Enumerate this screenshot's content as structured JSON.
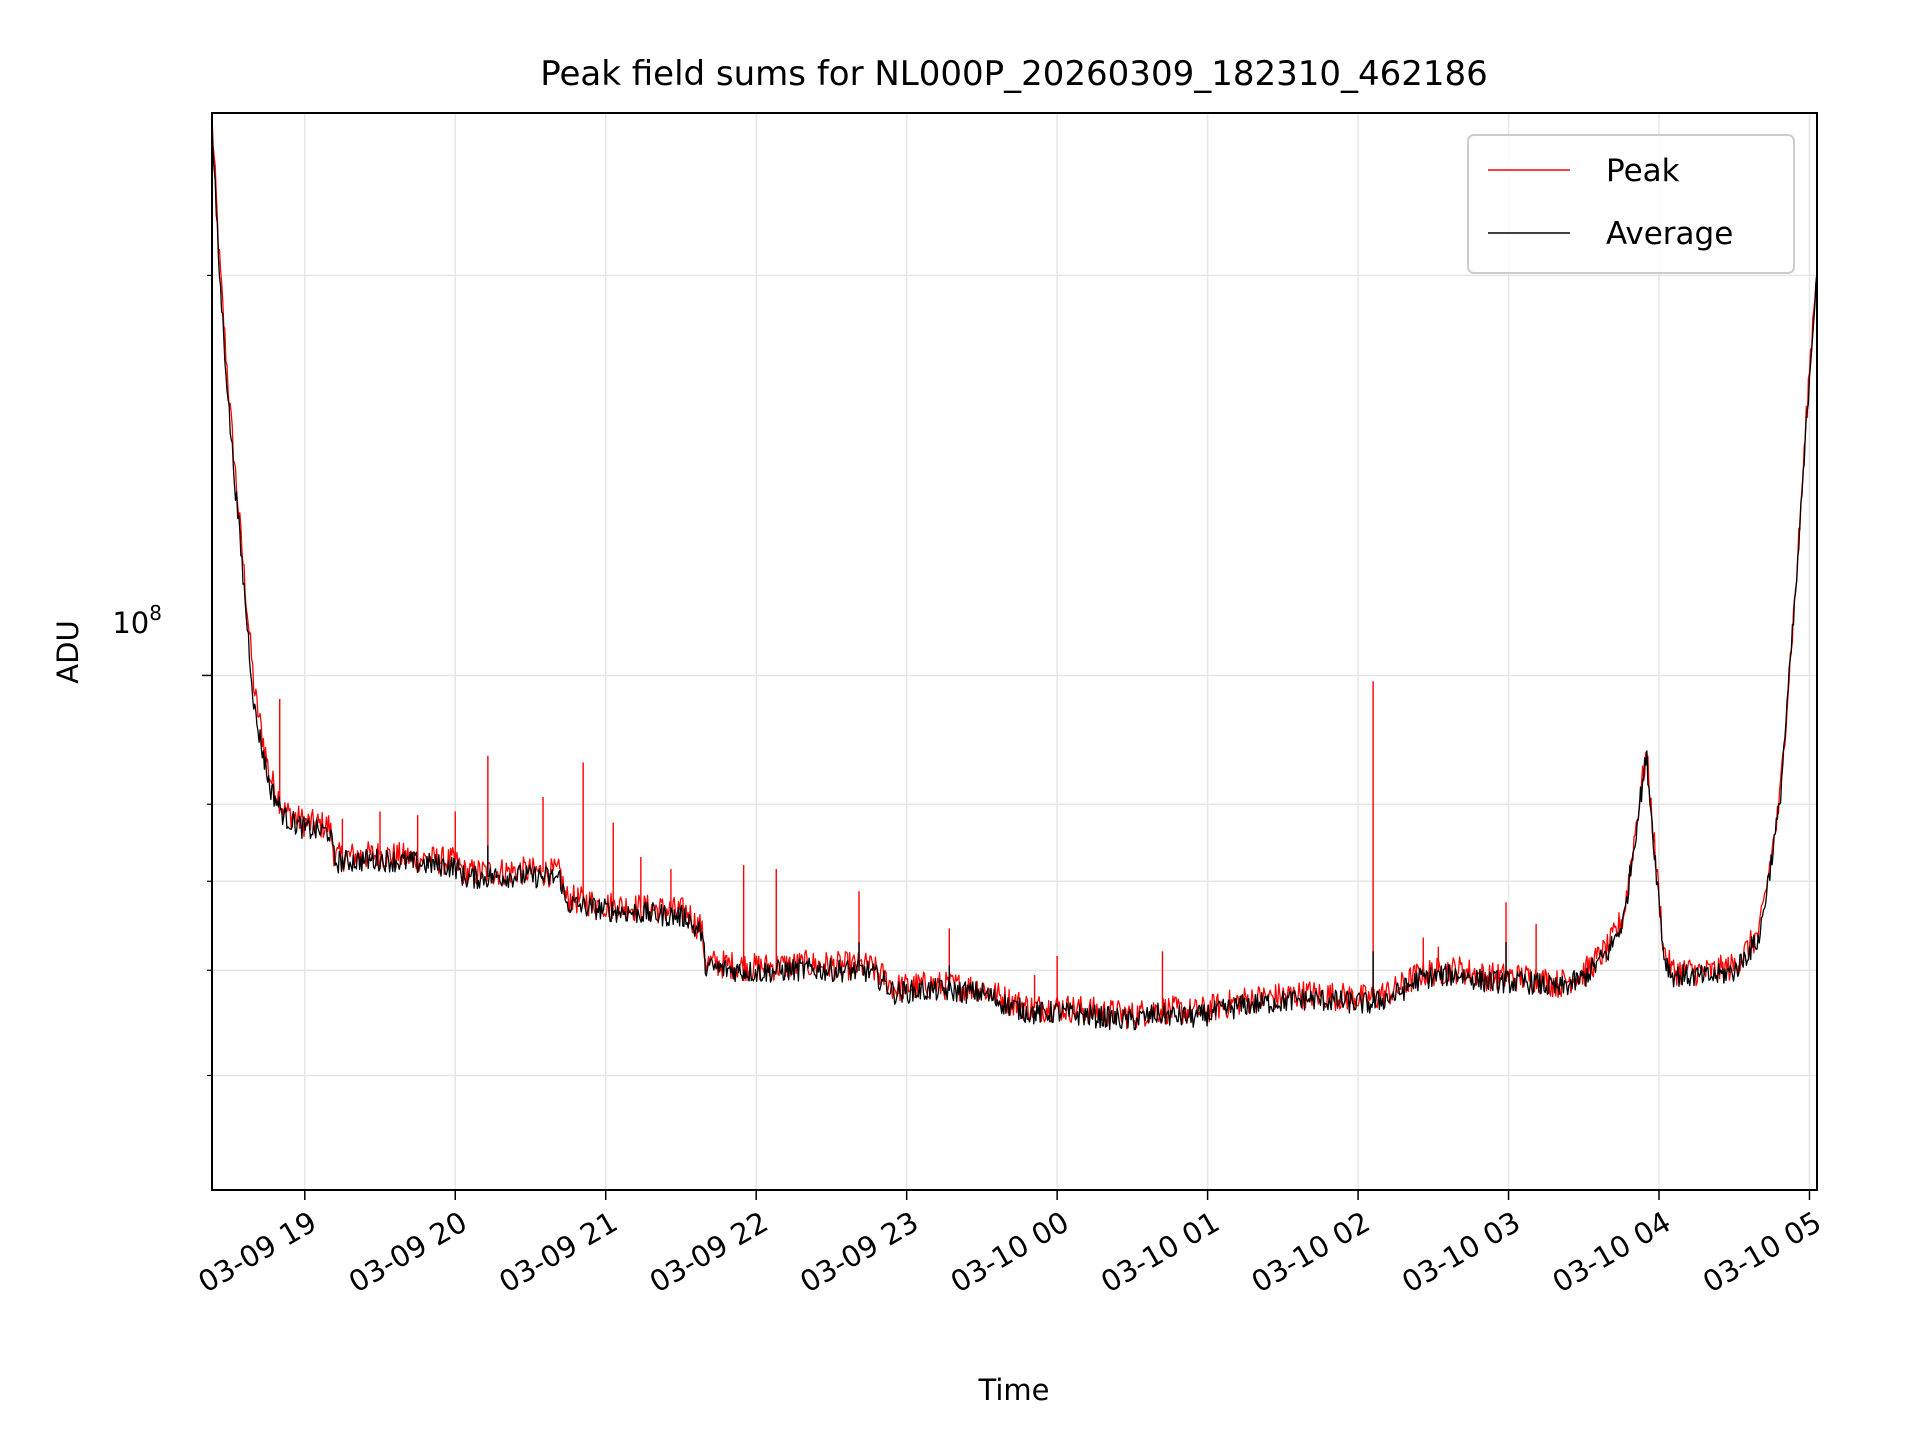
{
  "chart_data": {
    "type": "line",
    "title": "Peak field sums for NL000P_20260309_182310_462186",
    "xlabel": "Time",
    "ylabel": "ADU",
    "y_scale": "log",
    "x_tick_labels": [
      "03-09 19",
      "03-09 20",
      "03-09 21",
      "03-09 22",
      "03-09 23",
      "03-10 00",
      "03-10 01",
      "03-10 02",
      "03-10 03",
      "03-10 04",
      "03-10 05"
    ],
    "y_tick_label_base": "10",
    "y_tick_label_exp": "8",
    "xlim": [
      "2026-03-09 18:23",
      "2026-03-10 05:03"
    ],
    "ylim": [
      41000000,
      265000000
    ],
    "grid": true,
    "legend_position": "upper right",
    "series": [
      {
        "name": "Peak",
        "color": "#ff0000",
        "points": [
          [
            "2026-03-09 18:23",
            262000000
          ],
          [
            "2026-03-09 18:26",
            205000000
          ],
          [
            "2026-03-09 18:30",
            160000000
          ],
          [
            "2026-03-09 18:35",
            124000000
          ],
          [
            "2026-03-09 18:40",
            97000000
          ],
          [
            "2026-03-09 18:46",
            84000000
          ],
          [
            "2026-03-09 18:52",
            79000000
          ],
          [
            "2026-03-09 19:00",
            77500000
          ],
          [
            "2026-03-09 19:10",
            77000000
          ],
          [
            "2026-03-09 19:12",
            73000000
          ],
          [
            "2026-03-09 19:30",
            73300000
          ],
          [
            "2026-03-09 19:50",
            72700000
          ],
          [
            "2026-03-09 20:00",
            72400000
          ],
          [
            "2026-03-09 20:04",
            71000000
          ],
          [
            "2026-03-09 20:25",
            71300000
          ],
          [
            "2026-03-09 20:42",
            71000000
          ],
          [
            "2026-03-09 20:44",
            68000000
          ],
          [
            "2026-03-09 21:00",
            67200000
          ],
          [
            "2026-03-09 21:20",
            66700000
          ],
          [
            "2026-03-09 21:33",
            66400000
          ],
          [
            "2026-03-09 21:35",
            65200000
          ],
          [
            "2026-03-09 21:38",
            64700000
          ],
          [
            "2026-03-09 21:40",
            60800000
          ],
          [
            "2026-03-09 22:00",
            60300000
          ],
          [
            "2026-03-09 22:20",
            60600000
          ],
          [
            "2026-03-09 22:45",
            60400000
          ],
          [
            "2026-03-09 22:50",
            59500000
          ],
          [
            "2026-03-09 22:55",
            58200000
          ],
          [
            "2026-03-09 23:10",
            58500000
          ],
          [
            "2026-03-09 23:30",
            58200000
          ],
          [
            "2026-03-09 23:40",
            57000000
          ],
          [
            "2026-03-09 23:50",
            56200000
          ],
          [
            "2026-03-10 00:00",
            56300000
          ],
          [
            "2026-03-10 00:15",
            55900000
          ],
          [
            "2026-03-10 00:30",
            55500000
          ],
          [
            "2026-03-10 00:40",
            56100000
          ],
          [
            "2026-03-10 00:55",
            55800000
          ],
          [
            "2026-03-10 01:15",
            57000000
          ],
          [
            "2026-03-10 01:40",
            57600000
          ],
          [
            "2026-03-10 02:05",
            57100000
          ],
          [
            "2026-03-10 02:15",
            58000000
          ],
          [
            "2026-03-10 02:25",
            59700000
          ],
          [
            "2026-03-10 02:40",
            60100000
          ],
          [
            "2026-03-10 02:50",
            59400000
          ],
          [
            "2026-03-10 03:10",
            59200000
          ],
          [
            "2026-03-10 03:20",
            58600000
          ],
          [
            "2026-03-10 03:30",
            59700000
          ],
          [
            "2026-03-10 03:40",
            62500000
          ],
          [
            "2026-03-10 03:46",
            66000000
          ],
          [
            "2026-03-10 03:52",
            80000000
          ],
          [
            "2026-03-10 03:55",
            87500000
          ],
          [
            "2026-03-10 03:58",
            75000000
          ],
          [
            "2026-03-10 04:02",
            62000000
          ],
          [
            "2026-03-10 04:05",
            60000000
          ],
          [
            "2026-03-10 04:20",
            59800000
          ],
          [
            "2026-03-10 04:30",
            60400000
          ],
          [
            "2026-03-10 04:40",
            64000000
          ],
          [
            "2026-03-10 04:48",
            80000000
          ],
          [
            "2026-03-10 04:55",
            120000000
          ],
          [
            "2026-03-10 05:00",
            170000000
          ],
          [
            "2026-03-10 05:03",
            205000000
          ]
        ],
        "spikes": [
          [
            "2026-03-09 18:50",
            96000000
          ],
          [
            "2026-03-09 19:15",
            78000000
          ],
          [
            "2026-03-09 19:30",
            79000000
          ],
          [
            "2026-03-09 19:45",
            78500000
          ],
          [
            "2026-03-09 20:00",
            79000000
          ],
          [
            "2026-03-09 20:13",
            87000000
          ],
          [
            "2026-03-09 20:35",
            81000000
          ],
          [
            "2026-03-09 20:51",
            86000000
          ],
          [
            "2026-03-09 21:03",
            77500000
          ],
          [
            "2026-03-09 21:14",
            73000000
          ],
          [
            "2026-03-09 21:26",
            71500000
          ],
          [
            "2026-03-09 21:55",
            72000000
          ],
          [
            "2026-03-09 22:08",
            71500000
          ],
          [
            "2026-03-09 22:41",
            68800000
          ],
          [
            "2026-03-09 23:17",
            64500000
          ],
          [
            "2026-03-09 23:51",
            59500000
          ],
          [
            "2026-03-10 00:00",
            61500000
          ],
          [
            "2026-03-10 00:42",
            62000000
          ],
          [
            "2026-03-10 02:06",
            99000000
          ],
          [
            "2026-03-10 02:26",
            63500000
          ],
          [
            "2026-03-10 02:32",
            62500000
          ],
          [
            "2026-03-10 02:59",
            67500000
          ],
          [
            "2026-03-10 03:11",
            65000000
          ]
        ]
      },
      {
        "name": "Average",
        "color": "#000000",
        "points": [
          [
            "2026-03-09 18:23",
            258000000
          ],
          [
            "2026-03-09 18:26",
            200000000
          ],
          [
            "2026-03-09 18:30",
            156000000
          ],
          [
            "2026-03-09 18:35",
            121000000
          ],
          [
            "2026-03-09 18:40",
            94000000
          ],
          [
            "2026-03-09 18:46",
            82500000
          ],
          [
            "2026-03-09 18:52",
            78200000
          ],
          [
            "2026-03-09 19:00",
            76700000
          ],
          [
            "2026-03-09 19:10",
            76200000
          ],
          [
            "2026-03-09 19:12",
            72400000
          ],
          [
            "2026-03-09 19:30",
            72700000
          ],
          [
            "2026-03-09 19:50",
            72100000
          ],
          [
            "2026-03-09 20:00",
            71800000
          ],
          [
            "2026-03-09 20:04",
            70400000
          ],
          [
            "2026-03-09 20:25",
            70700000
          ],
          [
            "2026-03-09 20:42",
            70400000
          ],
          [
            "2026-03-09 20:44",
            67400000
          ],
          [
            "2026-03-09 21:00",
            66600000
          ],
          [
            "2026-03-09 21:20",
            66100000
          ],
          [
            "2026-03-09 21:33",
            65800000
          ],
          [
            "2026-03-09 21:35",
            64600000
          ],
          [
            "2026-03-09 21:38",
            64100000
          ],
          [
            "2026-03-09 21:40",
            60300000
          ],
          [
            "2026-03-09 22:00",
            59800000
          ],
          [
            "2026-03-09 22:20",
            60100000
          ],
          [
            "2026-03-09 22:45",
            59900000
          ],
          [
            "2026-03-09 22:50",
            59000000
          ],
          [
            "2026-03-09 22:55",
            57700000
          ],
          [
            "2026-03-09 23:10",
            58000000
          ],
          [
            "2026-03-09 23:30",
            57700000
          ],
          [
            "2026-03-09 23:40",
            56500000
          ],
          [
            "2026-03-09 23:50",
            55700000
          ],
          [
            "2026-03-10 00:00",
            55800000
          ],
          [
            "2026-03-10 00:15",
            55400000
          ],
          [
            "2026-03-10 00:30",
            55000000
          ],
          [
            "2026-03-10 00:40",
            55600000
          ],
          [
            "2026-03-10 00:55",
            55300000
          ],
          [
            "2026-03-10 01:15",
            56500000
          ],
          [
            "2026-03-10 01:40",
            57100000
          ],
          [
            "2026-03-10 02:05",
            56600000
          ],
          [
            "2026-03-10 02:15",
            57500000
          ],
          [
            "2026-03-10 02:25",
            59200000
          ],
          [
            "2026-03-10 02:40",
            59600000
          ],
          [
            "2026-03-10 02:50",
            58900000
          ],
          [
            "2026-03-10 03:10",
            58700000
          ],
          [
            "2026-03-10 03:20",
            58100000
          ],
          [
            "2026-03-10 03:30",
            59200000
          ],
          [
            "2026-03-10 03:40",
            62000000
          ],
          [
            "2026-03-10 03:46",
            65500000
          ],
          [
            "2026-03-10 03:52",
            79500000
          ],
          [
            "2026-03-10 03:55",
            87000000
          ],
          [
            "2026-03-10 03:58",
            74500000
          ],
          [
            "2026-03-10 04:02",
            61500000
          ],
          [
            "2026-03-10 04:05",
            59500000
          ],
          [
            "2026-03-10 04:20",
            59300000
          ],
          [
            "2026-03-10 04:30",
            59900000
          ],
          [
            "2026-03-10 04:40",
            63500000
          ],
          [
            "2026-03-10 04:48",
            79500000
          ],
          [
            "2026-03-10 04:55",
            119000000
          ],
          [
            "2026-03-10 05:00",
            168000000
          ],
          [
            "2026-03-10 05:03",
            203000000
          ]
        ],
        "spikes": [
          [
            "2026-03-09 20:13",
            74500000
          ],
          [
            "2026-03-09 22:41",
            63000000
          ],
          [
            "2026-03-09 23:17",
            60500000
          ],
          [
            "2026-03-10 02:06",
            62000000
          ],
          [
            "2026-03-10 02:59",
            63000000
          ]
        ]
      }
    ]
  }
}
